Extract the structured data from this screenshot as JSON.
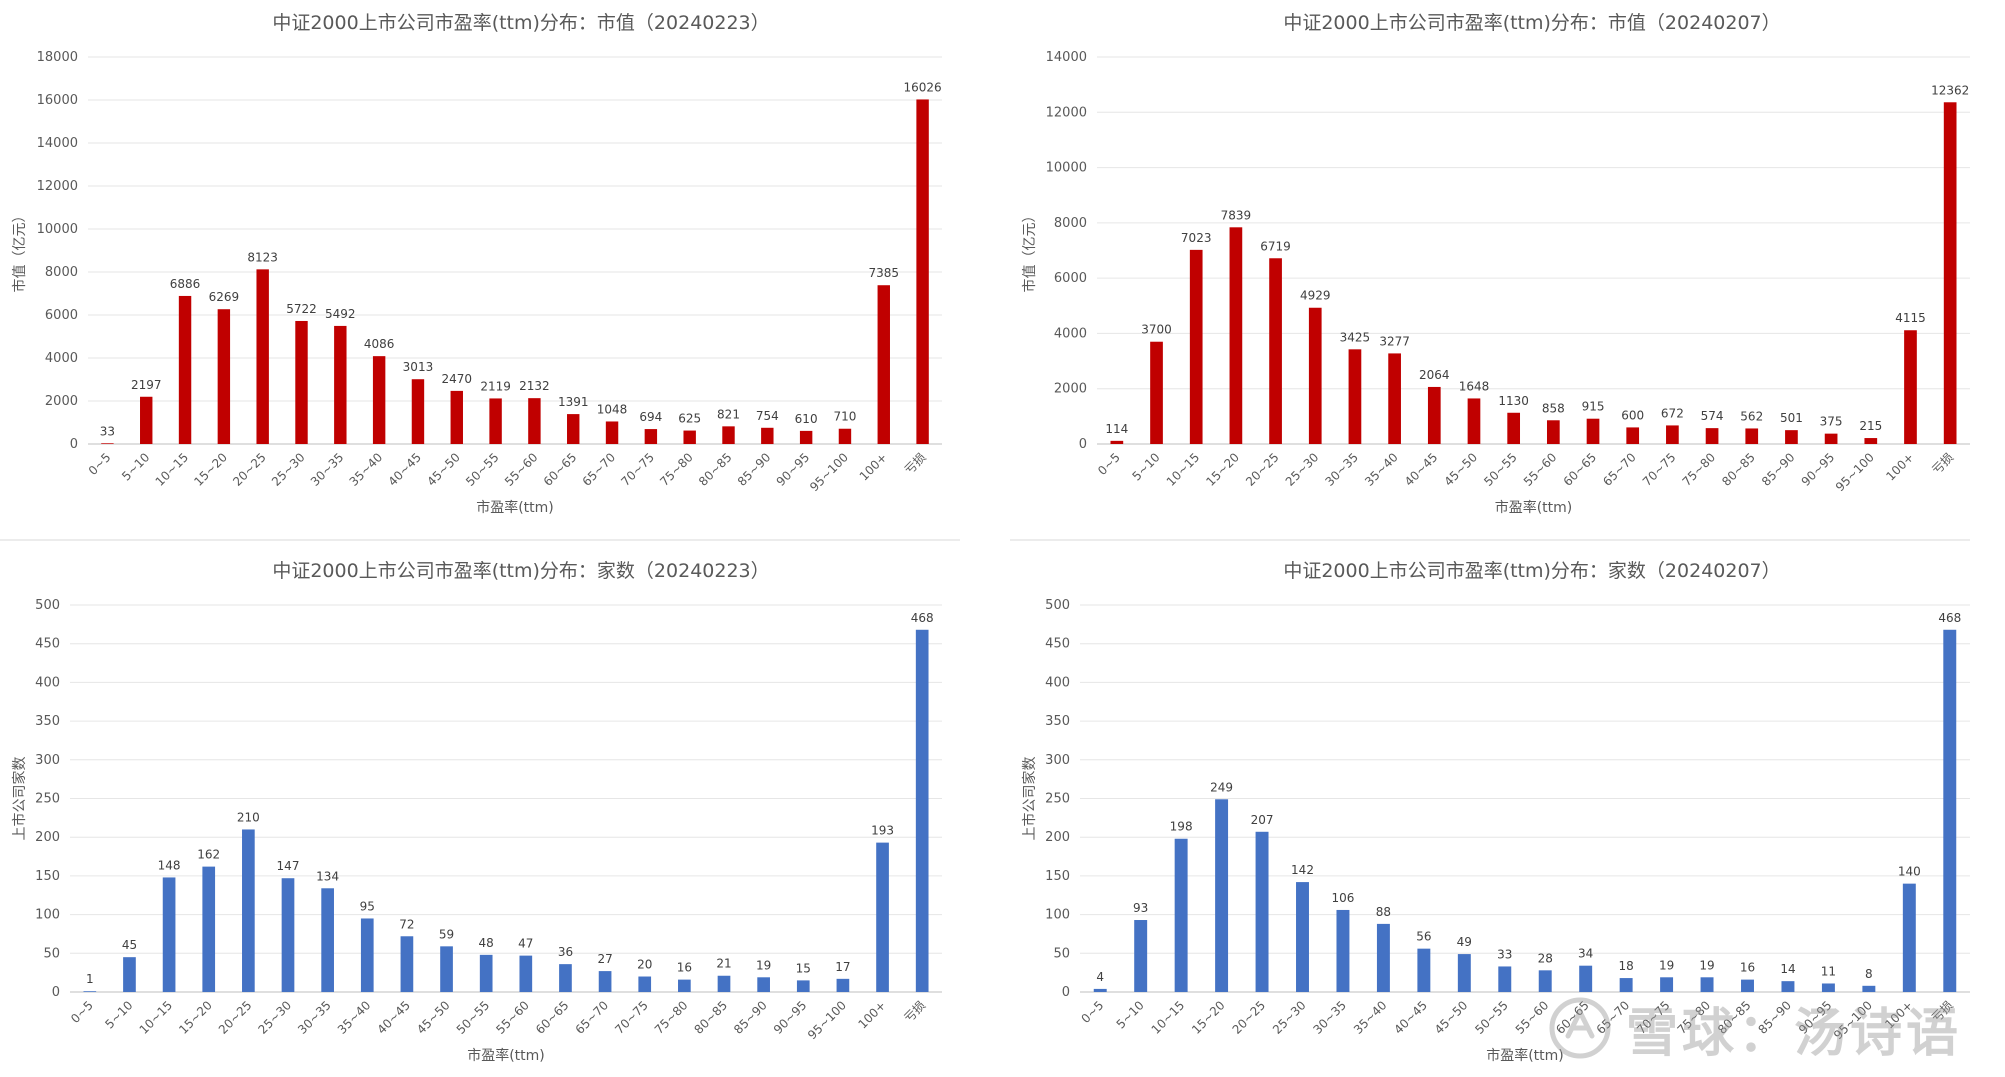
{
  "watermark": {
    "text": "雪球：汤诗语"
  },
  "chart_data": [
    {
      "type": "bar",
      "title": "中证2000上市公司市盈率(ttm)分布：市值（20240223）",
      "xlabel": "市盈率(ttm)",
      "ylabel": "市值（亿元）",
      "ylim": [
        0,
        18000
      ],
      "yticks": [
        "0",
        "2000",
        "4000",
        "6000",
        "8000",
        "10000",
        "12000",
        "14000",
        "16000",
        "18000"
      ],
      "grid": true,
      "color": "#C00000",
      "categories": [
        "0~5",
        "5~10",
        "10~15",
        "15~20",
        "20~25",
        "25~30",
        "30~35",
        "35~40",
        "40~45",
        "45~50",
        "50~55",
        "55~60",
        "60~65",
        "65~70",
        "70~75",
        "75~80",
        "80~85",
        "85~90",
        "90~95",
        "95~100",
        "100+",
        "亏损"
      ],
      "values": [
        33,
        2197,
        6886,
        6269,
        8123,
        5722,
        5492,
        4086,
        3013,
        2470,
        2119,
        2132,
        1391,
        1048,
        694,
        625,
        821,
        754,
        610,
        710,
        7385,
        16026
      ]
    },
    {
      "type": "bar",
      "title": "中证2000上市公司市盈率(ttm)分布：市值（20240207）",
      "xlabel": "市盈率(ttm)",
      "ylabel": "市值（亿元）",
      "ylim": [
        0,
        14000
      ],
      "yticks": [
        "0",
        "2000",
        "4000",
        "6000",
        "8000",
        "10000",
        "12000",
        "14000"
      ],
      "grid": true,
      "color": "#C00000",
      "categories": [
        "0~5",
        "5~10",
        "10~15",
        "15~20",
        "20~25",
        "25~30",
        "30~35",
        "35~40",
        "40~45",
        "45~50",
        "50~55",
        "55~60",
        "60~65",
        "65~70",
        "70~75",
        "75~80",
        "80~85",
        "85~90",
        "90~95",
        "95~100",
        "100+",
        "亏损"
      ],
      "values": [
        114,
        3700,
        7023,
        7839,
        6719,
        4929,
        3425,
        3277,
        2064,
        1648,
        1130,
        858,
        915,
        600,
        672,
        574,
        562,
        501,
        375,
        215,
        4115,
        12362
      ]
    },
    {
      "type": "bar",
      "title": "中证2000上市公司市盈率(ttm)分布：家数（20240223）",
      "xlabel": "市盈率(ttm)",
      "ylabel": "上市公司家数",
      "ylim": [
        0,
        500
      ],
      "yticks": [
        "0",
        "50",
        "100",
        "150",
        "200",
        "250",
        "300",
        "350",
        "400",
        "450",
        "500"
      ],
      "grid": true,
      "color": "#4472C4",
      "categories": [
        "0~5",
        "5~10",
        "10~15",
        "15~20",
        "20~25",
        "25~30",
        "30~35",
        "35~40",
        "40~45",
        "45~50",
        "50~55",
        "55~60",
        "60~65",
        "65~70",
        "70~75",
        "75~80",
        "80~85",
        "85~90",
        "90~95",
        "95~100",
        "100+",
        "亏损"
      ],
      "values": [
        1,
        45,
        148,
        162,
        210,
        147,
        134,
        95,
        72,
        59,
        48,
        47,
        36,
        27,
        20,
        16,
        21,
        19,
        15,
        17,
        193,
        468
      ]
    },
    {
      "type": "bar",
      "title": "中证2000上市公司市盈率(ttm)分布：家数（20240207）",
      "xlabel": "市盈率(ttm)",
      "ylabel": "上市公司家数",
      "ylim": [
        0,
        500
      ],
      "yticks": [
        "0",
        "50",
        "100",
        "150",
        "200",
        "250",
        "300",
        "350",
        "400",
        "450",
        "500"
      ],
      "grid": true,
      "color": "#4472C4",
      "categories": [
        "0~5",
        "5~10",
        "10~15",
        "15~20",
        "20~25",
        "25~30",
        "30~35",
        "35~40",
        "40~45",
        "45~50",
        "50~55",
        "55~60",
        "60~65",
        "65~70",
        "70~75",
        "75~80",
        "80~85",
        "85~90",
        "90~95",
        "95~100",
        "100+",
        "亏损"
      ],
      "values": [
        4,
        93,
        198,
        249,
        207,
        142,
        106,
        88,
        56,
        49,
        33,
        28,
        34,
        18,
        19,
        19,
        16,
        14,
        11,
        8,
        140,
        468
      ]
    }
  ]
}
